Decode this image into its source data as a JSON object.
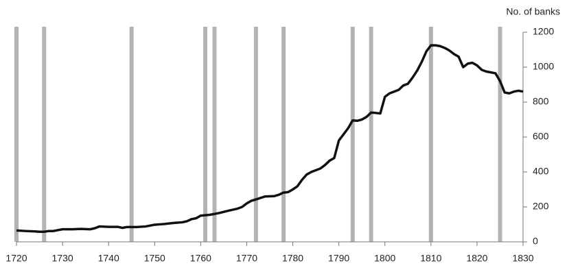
{
  "chart_data": {
    "type": "line",
    "y_axis_label": "No. of banks",
    "x": [
      1720,
      1722,
      1724,
      1725,
      1726,
      1727,
      1728,
      1730,
      1732,
      1734,
      1736,
      1737,
      1738,
      1740,
      1742,
      1743,
      1744,
      1746,
      1748,
      1750,
      1752,
      1754,
      1756,
      1757,
      1758,
      1759,
      1760,
      1762,
      1764,
      1766,
      1768,
      1769,
      1770,
      1771,
      1772,
      1774,
      1776,
      1777,
      1778,
      1779,
      1780,
      1781,
      1782,
      1783,
      1784,
      1785,
      1786,
      1787,
      1788,
      1789,
      1790,
      1791,
      1792,
      1793,
      1794,
      1795,
      1796,
      1797,
      1798,
      1799,
      1800,
      1801,
      1802,
      1803,
      1804,
      1805,
      1806,
      1807,
      1808,
      1809,
      1810,
      1811,
      1812,
      1813,
      1814,
      1815,
      1816,
      1817,
      1818,
      1819,
      1820,
      1821,
      1822,
      1823,
      1824,
      1825,
      1826,
      1827,
      1828,
      1829,
      1830
    ],
    "series": [
      {
        "color": "#111111",
        "values": [
          65,
          62,
          60,
          58,
          58,
          62,
          62,
          72,
          72,
          74,
          72,
          78,
          88,
          86,
          86,
          80,
          85,
          85,
          88,
          98,
          102,
          108,
          112,
          118,
          130,
          135,
          150,
          155,
          165,
          178,
          190,
          200,
          220,
          235,
          243,
          260,
          262,
          270,
          282,
          285,
          300,
          318,
          355,
          385,
          400,
          410,
          420,
          440,
          465,
          480,
          580,
          615,
          650,
          695,
          693,
          700,
          715,
          740,
          738,
          735,
          830,
          850,
          860,
          870,
          895,
          905,
          940,
          980,
          1030,
          1090,
          1125,
          1125,
          1120,
          1110,
          1095,
          1075,
          1060,
          1000,
          1020,
          1025,
          1010,
          985,
          975,
          970,
          965,
          920,
          855,
          850,
          860,
          865,
          860
        ]
      }
    ],
    "crisis_years": [
      1720,
      1726,
      1745,
      1761,
      1763,
      1772,
      1778,
      1793,
      1797,
      1810,
      1825
    ],
    "crisis_color": "#b3b3b3",
    "xlim": [
      1720,
      1830
    ],
    "xticks": [
      1720,
      1730,
      1740,
      1750,
      1760,
      1770,
      1780,
      1790,
      1800,
      1810,
      1820,
      1830
    ],
    "ylim": [
      0,
      1200
    ],
    "yticks": [
      0,
      200,
      400,
      600,
      800,
      1000,
      1200
    ],
    "y_axis_side": "right"
  }
}
